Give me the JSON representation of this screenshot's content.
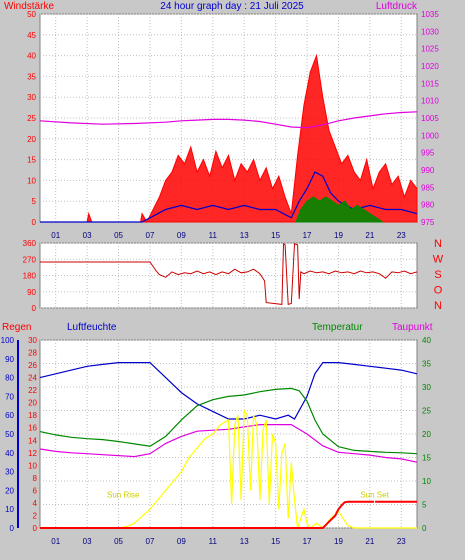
{
  "header": {
    "title": "24 hour graph day : 21 Juli 2025",
    "left_label": "Windstärke",
    "right_label": "Luftdruck"
  },
  "colors": {
    "wind": "#ff0000",
    "gust": "#ff0000",
    "avg": "#0000cc",
    "green": "#008800",
    "pressure": "#e000e0",
    "direction": "#cc0000",
    "humidity": "#0000cc",
    "temperature": "#008800",
    "dewpoint": "#e000e0",
    "solar": "#ffff00",
    "rain": "#ff0000",
    "bg": "#c8c8c8",
    "plot": "#ffffff"
  },
  "x_ticks": [
    "01",
    "03",
    "05",
    "07",
    "09",
    "11",
    "13",
    "15",
    "17",
    "19",
    "21",
    "23"
  ],
  "panel3_labels": {
    "regen": "Regen",
    "luftfeuchte": "Luftfeuchte",
    "temperatur": "Temperatur",
    "taupunkt": "Taupunkt",
    "sunrise": "Sun Rise",
    "sunset": "Sun Set"
  },
  "direction_letters": [
    "N",
    "W",
    "S",
    "O",
    "N"
  ],
  "chart_data": [
    {
      "type": "line",
      "title": "24 hour graph day : 21 Juli 2025",
      "ylabel": "Windstärke",
      "y2label": "Luftdruck",
      "ylim": [
        0,
        50
      ],
      "y2lim": [
        975,
        1035
      ],
      "yticks": [
        0,
        5,
        10,
        15,
        20,
        25,
        30,
        35,
        40,
        45,
        50
      ],
      "y2ticks": [
        975,
        980,
        985,
        990,
        995,
        1000,
        1005,
        1010,
        1015,
        1020,
        1025,
        1030,
        1035
      ],
      "xlim": [
        0,
        24
      ],
      "series": [
        {
          "name": "Windstärke",
          "axis": "left",
          "x": [
            0,
            3,
            3.1,
            3.3,
            6.4,
            6.5,
            6.8,
            7.2,
            7.6,
            8.0,
            8.4,
            8.8,
            9.2,
            9.6,
            10.0,
            10.4,
            10.8,
            11.2,
            11.6,
            12.0,
            12.4,
            12.8,
            13.2,
            13.6,
            14.0,
            14.4,
            14.8,
            15.2,
            15.6,
            16.0,
            16.4,
            16.8,
            17.2,
            17.6,
            18.0,
            18.4,
            18.8,
            19.2,
            19.6,
            20.0,
            20.4,
            20.8,
            21.2,
            21.6,
            22.0,
            22.4,
            22.8,
            23.2,
            23.6,
            24.0
          ],
          "y": [
            0,
            0,
            2,
            0,
            0,
            2,
            0,
            3,
            6,
            10,
            12,
            16,
            14,
            18,
            12,
            15,
            11,
            17,
            13,
            16,
            10,
            14,
            12,
            15,
            10,
            13,
            8,
            11,
            6,
            2,
            16,
            28,
            36,
            40,
            30,
            22,
            18,
            14,
            16,
            12,
            10,
            15,
            8,
            12,
            14,
            9,
            11,
            6,
            10,
            8
          ]
        },
        {
          "name": "Windmittel",
          "axis": "left",
          "x": [
            0,
            6.5,
            7,
            8,
            9,
            10,
            11,
            12,
            13,
            14,
            15,
            16,
            16.5,
            17,
            17.5,
            18,
            18.5,
            19,
            19.5,
            20,
            21,
            22,
            23,
            24
          ],
          "y": [
            0,
            0,
            1,
            3,
            4,
            3,
            4,
            3,
            4,
            3,
            3,
            1,
            5,
            8,
            12,
            11,
            7,
            5,
            4,
            3,
            4,
            3,
            3,
            2
          ]
        },
        {
          "name": "Böen",
          "axis": "left",
          "x": [
            16.3,
            16.6,
            17,
            17.4,
            17.8,
            18.2,
            18.6,
            19,
            19.4,
            19.8,
            20.2,
            20.6,
            21,
            21.4,
            21.8
          ],
          "y": [
            0,
            3,
            5,
            6,
            5,
            6,
            5,
            4,
            5,
            3,
            4,
            3,
            2,
            1,
            0
          ]
        },
        {
          "name": "Luftdruck",
          "axis": "right",
          "x": [
            0,
            2,
            4,
            6,
            8,
            9,
            10,
            11,
            12,
            13,
            14,
            15,
            16,
            17,
            18,
            19,
            20,
            21,
            22,
            23,
            24
          ],
          "y": [
            1004.2,
            1003.6,
            1003.2,
            1003.4,
            1003.8,
            1004.2,
            1004.4,
            1004.6,
            1004.6,
            1004.4,
            1004.0,
            1003.2,
            1002.4,
            1002.2,
            1003.0,
            1004.2,
            1005.0,
            1005.6,
            1006.2,
            1006.6,
            1006.8
          ]
        }
      ]
    },
    {
      "type": "line",
      "ylim": [
        0,
        360
      ],
      "yticks": [
        0,
        90,
        180,
        270,
        360
      ],
      "xlim": [
        0,
        24
      ],
      "series": [
        {
          "name": "Windrichtung",
          "x": [
            0,
            7,
            7.4,
            7.6,
            8,
            8.4,
            8.8,
            9.2,
            9.6,
            10,
            10.4,
            10.8,
            11.2,
            11.6,
            12,
            12.4,
            12.8,
            13.2,
            13.6,
            14,
            14.3,
            14.4,
            15.4,
            15.5,
            15.6,
            15.8,
            16,
            16.2,
            16.4,
            16.5,
            16.6,
            16.8,
            17.2,
            17.6,
            18,
            18.4,
            18.8,
            19.2,
            19.6,
            20,
            20.4,
            20.8,
            21.2,
            21.6,
            22,
            22.4,
            22.8,
            23.2,
            23.6,
            24
          ],
          "y": [
            255,
            255,
            205,
            185,
            170,
            200,
            185,
            195,
            190,
            205,
            190,
            200,
            185,
            200,
            190,
            215,
            195,
            200,
            215,
            190,
            150,
            30,
            20,
            355,
            350,
            20,
            25,
            355,
            350,
            50,
            200,
            190,
            205,
            195,
            200,
            190,
            205,
            195,
            200,
            190,
            205,
            195,
            200,
            190,
            165,
            200,
            195,
            205,
            190,
            200
          ]
        }
      ]
    },
    {
      "type": "line",
      "ylabel": "Luftfeuchte",
      "xlim": [
        0,
        24
      ],
      "axes": {
        "humidity": [
          0,
          100
        ],
        "rain": [
          0,
          30
        ],
        "temperature": [
          0,
          40
        ]
      },
      "series": [
        {
          "name": "Luftfeuchte",
          "axis": "humidity",
          "x": [
            0,
            1,
            2,
            3,
            4,
            5,
            6,
            7,
            7.5,
            8,
            9,
            10,
            11,
            12,
            13,
            14,
            15,
            15.8,
            16.2,
            17,
            17.5,
            18,
            19,
            20,
            21,
            22,
            23,
            24
          ],
          "y": [
            80,
            82,
            84,
            86,
            87,
            88,
            88,
            88,
            84,
            80,
            72,
            66,
            62,
            58,
            58,
            60,
            58,
            60,
            58,
            70,
            82,
            88,
            88,
            87,
            86,
            85,
            84,
            82
          ]
        },
        {
          "name": "Temperatur",
          "axis": "temperature",
          "x": [
            0,
            1,
            2,
            3,
            4,
            5,
            6,
            7,
            8,
            9,
            10,
            11,
            12,
            13,
            14,
            15,
            16,
            16.5,
            17,
            17.5,
            18,
            19,
            20,
            21,
            22,
            23,
            24
          ],
          "y": [
            20.5,
            19.8,
            19.3,
            19.0,
            18.8,
            18.4,
            17.9,
            17.4,
            19.5,
            23,
            26,
            27.3,
            28,
            28.3,
            29,
            29.5,
            29.7,
            29.2,
            27,
            23,
            20,
            17.3,
            16.5,
            16.3,
            16.1,
            16,
            15.8
          ]
        },
        {
          "name": "Taupunkt",
          "axis": "temperature",
          "x": [
            0,
            1,
            2,
            3,
            4,
            5,
            6,
            7,
            8,
            9,
            10,
            11,
            12,
            13,
            14,
            15,
            16,
            17,
            18,
            19,
            20,
            21,
            22,
            23,
            24
          ],
          "y": [
            16.8,
            16.3,
            16.0,
            15.8,
            15.6,
            15.4,
            15.2,
            15.8,
            18,
            19.5,
            20.6,
            20.8,
            21,
            21.5,
            22,
            22,
            22,
            20,
            17.5,
            16.1,
            15.8,
            15.5,
            15,
            14.7,
            14
          ]
        },
        {
          "name": "Sonnenstrahlung",
          "axis": "temperature",
          "x": [
            0,
            5,
            5.5,
            6,
            6.5,
            7,
            7.5,
            8,
            8.5,
            9,
            9.5,
            10,
            10.5,
            11,
            11.5,
            12,
            12.2,
            12.4,
            12.6,
            12.8,
            13,
            13.2,
            13.4,
            13.6,
            13.8,
            14,
            14.2,
            14.4,
            14.6,
            14.8,
            15,
            15.2,
            15.4,
            15.6,
            15.8,
            16,
            16.2,
            16.4,
            16.6,
            16.8,
            17,
            17.2,
            17.6,
            18,
            18.5,
            19,
            19.3,
            19.6,
            20,
            24
          ],
          "y": [
            0,
            0,
            0.3,
            1,
            2.5,
            4,
            6,
            8,
            10,
            12,
            15,
            17,
            19,
            20,
            22,
            23,
            5,
            22,
            24,
            6,
            25,
            24,
            8,
            24,
            22,
            6,
            21,
            23,
            5,
            20,
            18,
            4,
            16,
            18,
            2,
            14,
            6,
            0,
            2,
            4,
            1,
            0,
            1,
            0,
            2,
            3.5,
            2,
            0.5,
            0,
            0
          ]
        },
        {
          "name": "Regen",
          "axis": "rain",
          "x": [
            0,
            18.0,
            18.2,
            18.4,
            18.6,
            18.8,
            19.0,
            19.2,
            19.4,
            19.6,
            20,
            21,
            22,
            23,
            24
          ],
          "y": [
            0,
            0,
            0.5,
            1,
            1.5,
            2,
            3,
            3.6,
            4.1,
            4.2,
            4.2,
            4.2,
            4.2,
            4.2,
            4.2
          ]
        }
      ],
      "annotations": [
        {
          "text": "Sun Rise",
          "x": 5.3
        },
        {
          "text": "Sun Set",
          "x": 21.3
        }
      ]
    }
  ]
}
